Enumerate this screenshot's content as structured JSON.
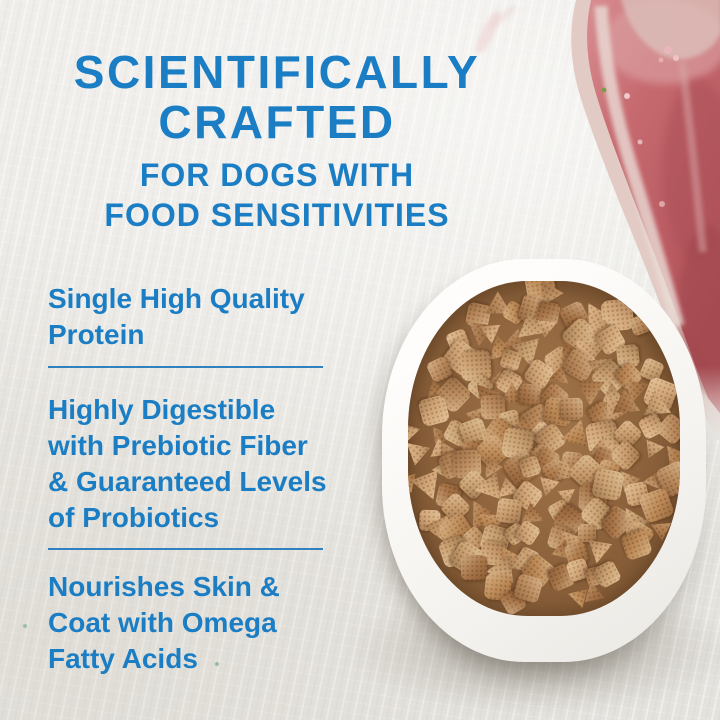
{
  "palette": {
    "accent_blue": "#1b7ec4",
    "divider_blue": "#2f81c0",
    "background": "#e9e7e3",
    "bowl_white": "#fbfaf7",
    "kibble_browns": [
      "#c79a6b",
      "#bd8a57",
      "#b07d4e",
      "#c9a071",
      "#a87549",
      "#d2a678",
      "#b9895c"
    ],
    "meat_red": "#c0606 7"
  },
  "headline": {
    "line1": "SCIENTIFICALLY",
    "line2": "CRAFTED"
  },
  "subheadline": {
    "line1": "FOR DOGS WITH",
    "line2": "FOOD SENSITIVITIES"
  },
  "features": [
    {
      "lines": [
        "Single High Quality",
        "Protein"
      ]
    },
    {
      "lines": [
        "Highly Digestible",
        "with Prebiotic Fiber",
        "& Guaranteed Levels",
        "of Probiotics"
      ]
    },
    {
      "lines": [
        "Nourishes Skin &",
        "Coat with Omega",
        "Fatty Acids"
      ]
    }
  ]
}
